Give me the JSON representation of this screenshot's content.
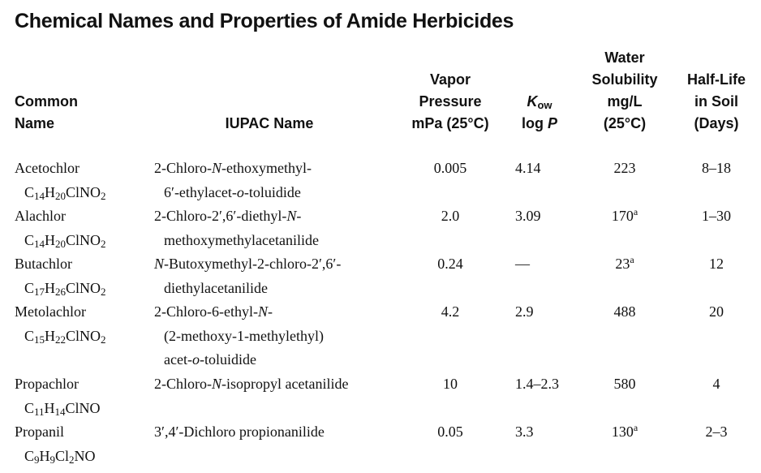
{
  "title": "Chemical Names and Properties of Amide Herbicides",
  "headers": {
    "common_name": [
      "Common",
      "Name"
    ],
    "iupac": "IUPAC Name",
    "vapor": [
      "Vapor",
      "Pressure",
      "mPa (25°C)"
    ],
    "kow": {
      "symbol": "K",
      "subscript": "ow",
      "line2_a": "log ",
      "line2_b": "P"
    },
    "water": [
      "Water",
      "Solubility",
      "mg/L",
      "(25°C)"
    ],
    "halflife": [
      "Half-Life",
      "in Soil",
      "(Days)"
    ]
  },
  "rows": [
    {
      "name": "Acetochlor",
      "formula": [
        "C",
        "14",
        "H",
        "20",
        "ClNO",
        "2"
      ],
      "iupac_l1": [
        "2-Chloro-",
        "N",
        "-ethoxymethyl-"
      ],
      "iupac_l2": [
        "6′-ethylacet-",
        "o",
        "-toluidide"
      ],
      "iupac_l3": [
        "",
        "",
        ""
      ],
      "vp": "0.005",
      "kow": "4.14",
      "ws": "223",
      "ws_note": "",
      "hl": "8–18"
    },
    {
      "name": "Alachlor",
      "formula": [
        "C",
        "14",
        "H",
        "20",
        "ClNO",
        "2"
      ],
      "iupac_l1": [
        "2-Chloro-2′,6′-diethyl-",
        "N",
        "-"
      ],
      "iupac_l2": [
        "methoxymethylacetanilide",
        "",
        ""
      ],
      "iupac_l3": [
        "",
        "",
        ""
      ],
      "vp": "2.0",
      "kow": "3.09",
      "ws": "170",
      "ws_note": "a",
      "hl": "1–30"
    },
    {
      "name": "Butachlor",
      "formula": [
        "C",
        "17",
        "H",
        "26",
        "ClNO",
        "2"
      ],
      "iupac_l1": [
        "",
        "N",
        "-Butoxymethyl-2-chloro-2′,6′-"
      ],
      "iupac_l2": [
        "diethylacetanilide",
        "",
        ""
      ],
      "iupac_l3": [
        "",
        "",
        ""
      ],
      "vp": "0.24",
      "kow": "—",
      "ws": "23",
      "ws_note": "a",
      "hl": "12"
    },
    {
      "name": "Metolachlor",
      "formula": [
        "C",
        "15",
        "H",
        "22",
        "ClNO",
        "2"
      ],
      "iupac_l1": [
        "2-Chloro-6-ethyl-",
        "N",
        "-"
      ],
      "iupac_l2": [
        "(2-methoxy-1-methylethyl)",
        "",
        ""
      ],
      "iupac_l3": [
        "acet-",
        "o",
        "-toluidide"
      ],
      "vp": "4.2",
      "kow": "2.9",
      "ws": "488",
      "ws_note": "",
      "hl": "20"
    },
    {
      "name": "Propachlor",
      "formula": [
        "C",
        "11",
        "H",
        "14",
        "ClNO",
        ""
      ],
      "iupac_l1": [
        "2-Chloro-",
        "N",
        "-isopropyl acetanilide"
      ],
      "iupac_l2": [
        "",
        "",
        ""
      ],
      "iupac_l3": [
        "",
        "",
        ""
      ],
      "vp": "10",
      "kow": "1.4–2.3",
      "ws": "580",
      "ws_note": "",
      "hl": "4"
    },
    {
      "name": "Propanil",
      "formula": [
        "C",
        "9",
        "H",
        "9",
        "Cl",
        "2",
        "NO"
      ],
      "iupac_l1": [
        "3′,4′-Dichloro propionanilide",
        "",
        ""
      ],
      "iupac_l2": [
        "",
        "",
        ""
      ],
      "iupac_l3": [
        "",
        "",
        ""
      ],
      "vp": "0.05",
      "kow": "3.3",
      "ws": "130",
      "ws_note": "a",
      "hl": "2–3"
    }
  ]
}
